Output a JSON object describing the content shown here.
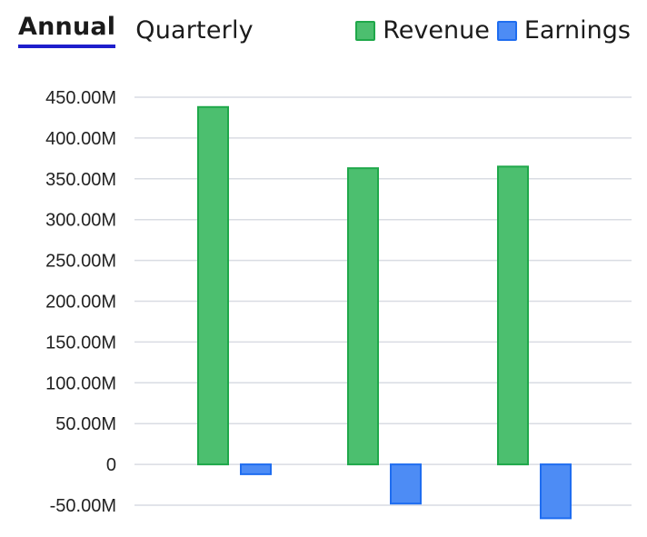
{
  "tabs": [
    {
      "label": "Annual",
      "active": true
    },
    {
      "label": "Quarterly",
      "active": false
    }
  ],
  "legend": [
    {
      "label": "Revenue",
      "color": "#4cbf6f",
      "border": "#1fa84a"
    },
    {
      "label": "Earnings",
      "color": "#4d8cf5",
      "border": "#1f6df0"
    }
  ],
  "chart_data": {
    "type": "bar",
    "categories": [
      "",
      "",
      ""
    ],
    "series": [
      {
        "name": "Revenue",
        "values": [
          438000000,
          363000000,
          365000000
        ]
      },
      {
        "name": "Earnings",
        "values": [
          -12000000,
          -48000000,
          -66000000
        ]
      }
    ],
    "y_ticks": [
      {
        "value": 450000000,
        "label": "450.00M"
      },
      {
        "value": 400000000,
        "label": "400.00M"
      },
      {
        "value": 350000000,
        "label": "350.00M"
      },
      {
        "value": 300000000,
        "label": "300.00M"
      },
      {
        "value": 250000000,
        "label": "250.00M"
      },
      {
        "value": 200000000,
        "label": "200.00M"
      },
      {
        "value": 150000000,
        "label": "150.00M"
      },
      {
        "value": 100000000,
        "label": "100.00M"
      },
      {
        "value": 50000000,
        "label": "50.00M"
      },
      {
        "value": 0,
        "label": "0"
      },
      {
        "value": -50000000,
        "label": "-50.00M"
      }
    ],
    "ylim": [
      -50000000,
      450000000
    ],
    "grid": true,
    "legend_position": "top-right"
  }
}
